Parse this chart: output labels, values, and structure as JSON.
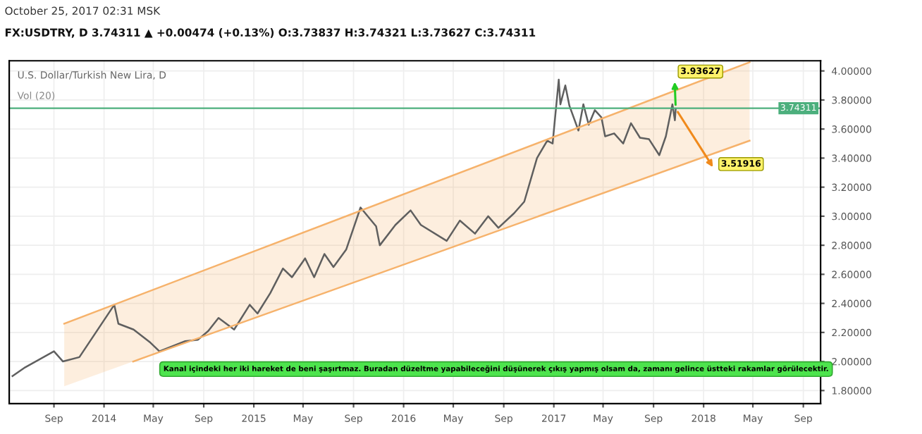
{
  "chart_data": {
    "type": "line",
    "title": "U.S. Dollar/Turkish New Lira, D",
    "annotations": [
      "October 25, 2017 02:31 MSK",
      "FX:USDTRY, D 3.74311 ▲ +0.00474 (+0.13%) O:3.73837 H:3.74321 L:3.73627 C:3.74311",
      "Vol (20)",
      "Kanal içindeki her iki hareket de beni şaşırtmaz. Buradan düzeltme yapabileceğini düşünerek çıkış yapmış olsam da, zamanı gelince üstteki rakamlar görülecektir.",
      "3.93627",
      "3.51916"
    ],
    "series": [
      {
        "color": "#5f5f5f",
        "x": [
          "2013-05-23",
          "2013-06-23",
          "2013-09-01",
          "2013-09-23",
          "2013-11-02",
          "2014-01-26",
          "2014-02-05",
          "2014-03-14",
          "2014-04-24",
          "2014-05-16",
          "2014-07-18",
          "2014-08-18",
          "2014-09-12",
          "2014-10-07",
          "2014-11-14",
          "2014-12-22",
          "2015-01-10",
          "2015-02-10",
          "2015-03-13",
          "2015-04-04",
          "2015-05-06",
          "2015-05-28",
          "2015-06-22",
          "2015-07-14",
          "2015-08-14",
          "2015-09-18",
          "2015-10-26",
          "2015-11-04",
          "2015-12-12",
          "2016-01-18",
          "2016-02-12",
          "2016-04-15",
          "2016-05-17",
          "2016-06-23",
          "2016-07-25",
          "2016-08-19",
          "2016-09-26",
          "2016-10-21",
          "2016-11-21",
          "2016-12-16",
          "2016-12-29",
          "2017-01-13",
          "2017-01-17",
          "2017-01-29",
          "2017-02-08",
          "2017-03-02",
          "2017-03-14",
          "2017-03-27",
          "2017-04-11",
          "2017-04-27",
          "2017-05-06",
          "2017-05-28",
          "2017-06-19",
          "2017-07-08",
          "2017-07-30",
          "2017-08-21",
          "2017-09-15",
          "2017-10-01",
          "2017-10-17",
          "2017-10-23",
          "2017-10-25"
        ],
        "values": [
          1.9,
          1.96,
          2.07,
          2.0,
          2.03,
          2.39,
          2.26,
          2.22,
          2.13,
          2.07,
          2.14,
          2.15,
          2.21,
          2.3,
          2.22,
          2.39,
          2.33,
          2.47,
          2.64,
          2.58,
          2.71,
          2.58,
          2.74,
          2.65,
          2.77,
          3.06,
          2.93,
          2.8,
          2.94,
          3.04,
          2.94,
          2.83,
          2.97,
          2.88,
          3.0,
          2.92,
          3.02,
          3.1,
          3.4,
          3.52,
          3.5,
          3.94,
          3.77,
          3.9,
          3.76,
          3.59,
          3.77,
          3.63,
          3.73,
          3.68,
          3.55,
          3.57,
          3.5,
          3.64,
          3.54,
          3.53,
          3.42,
          3.55,
          3.77,
          3.66,
          3.74
        ]
      },
      {
        "color": "#f6b26b",
        "x": [
          "2013-09-26",
          "2018-04-23"
        ],
        "values": [
          2.26,
          4.06
        ]
      },
      {
        "color": "#f6b26b",
        "x": [
          "2014-03-13",
          "2018-04-23"
        ],
        "values": [
          2.0,
          3.52
        ]
      }
    ],
    "ref_lines": [
      {
        "axis": "y",
        "value": 3.74311,
        "label": "3.74311",
        "color": "#4caf7d"
      }
    ],
    "xlim": [
      "2013-05-15",
      "2018-10-13"
    ],
    "xticks": [
      {
        "value": "2013-09-01",
        "label": "Sep"
      },
      {
        "value": "2014-01-01",
        "label": "2014"
      },
      {
        "value": "2014-05-01",
        "label": "May"
      },
      {
        "value": "2014-09-01",
        "label": "Sep"
      },
      {
        "value": "2015-01-01",
        "label": "2015"
      },
      {
        "value": "2015-05-01",
        "label": "May"
      },
      {
        "value": "2015-09-01",
        "label": "Sep"
      },
      {
        "value": "2016-01-01",
        "label": "2016"
      },
      {
        "value": "2016-05-01",
        "label": "May"
      },
      {
        "value": "2016-09-01",
        "label": "Sep"
      },
      {
        "value": "2017-01-01",
        "label": "2017"
      },
      {
        "value": "2017-05-01",
        "label": "May"
      },
      {
        "value": "2017-09-01",
        "label": "Sep"
      },
      {
        "value": "2018-01-01",
        "label": "2018"
      },
      {
        "value": "2018-05-01",
        "label": "May"
      },
      {
        "value": "2018-09-01",
        "label": "Sep"
      }
    ],
    "ylim": [
      1.71,
      4.07
    ],
    "yticks": [
      {
        "value": 1.8,
        "label": "1.80000"
      },
      {
        "value": 2.0,
        "label": "2.00000"
      },
      {
        "value": 2.2,
        "label": "2.20000"
      },
      {
        "value": 2.4,
        "label": "2.40000"
      },
      {
        "value": 2.6,
        "label": "2.60000"
      },
      {
        "value": 2.8,
        "label": "2.80000"
      },
      {
        "value": 3.0,
        "label": "3.00000"
      },
      {
        "value": 3.2,
        "label": "3.20000"
      },
      {
        "value": 3.4,
        "label": "3.40000"
      },
      {
        "value": 3.6,
        "label": "3.60000"
      },
      {
        "value": 3.8,
        "label": "3.80000"
      },
      {
        "value": 4.0,
        "label": "4.00000"
      }
    ],
    "grid": true
  }
}
